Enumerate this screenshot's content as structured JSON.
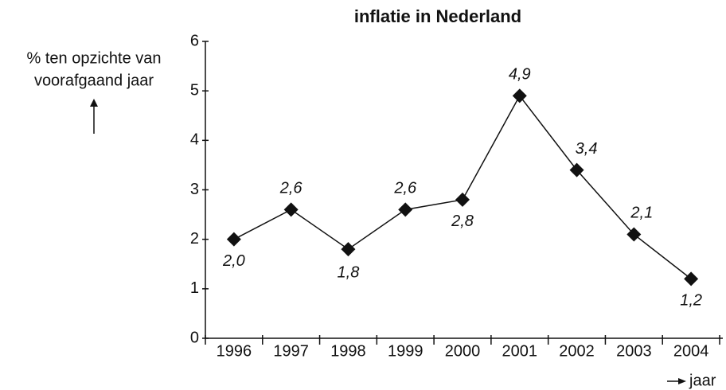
{
  "chart_data": {
    "type": "line",
    "title": "inflatie in Nederland",
    "ylabel": [
      "% ten opzichte van",
      "voorafgaand jaar"
    ],
    "xlabel": "jaar",
    "categories": [
      "1996",
      "1997",
      "1998",
      "1999",
      "2000",
      "2001",
      "2002",
      "2003",
      "2004"
    ],
    "values": [
      2.0,
      2.6,
      1.8,
      2.6,
      2.8,
      4.9,
      3.4,
      2.1,
      1.2
    ],
    "value_labels": [
      "2,0",
      "2,6",
      "1,8",
      "2,6",
      "2,8",
      "4,9",
      "3,4",
      "2,1",
      "1,2"
    ],
    "color": "#111111",
    "ylim": [
      0,
      6
    ],
    "yticks": [
      0,
      1,
      2,
      3,
      4,
      5,
      6
    ]
  }
}
